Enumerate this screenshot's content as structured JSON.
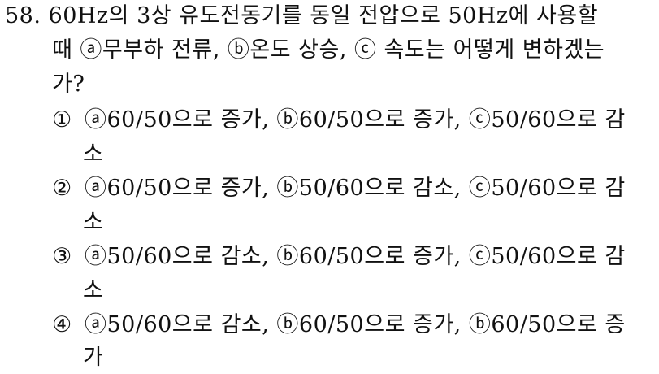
{
  "question": {
    "line1": "58. 60Hz의 3상 유도전동기를 동일 전압으로 50Hz에 사용할",
    "line2": "때 ⓐ무부하 전류, ⓑ온도 상승, ⓒ 속도는 어떻게 변하겠는",
    "line3": "가?"
  },
  "options": [
    {
      "marker": "①",
      "text": "ⓐ60/50으로 증가, ⓑ60/50으로 증가, ⓒ50/60으로 감",
      "continuation": "소"
    },
    {
      "marker": "②",
      "text": "ⓐ60/50으로 증가, ⓑ50/60으로 감소, ⓒ50/60으로 감",
      "continuation": "소"
    },
    {
      "marker": "③",
      "text": "ⓐ50/60으로 감소, ⓑ60/50으로 증가, ⓒ50/60으로 감",
      "continuation": "소"
    },
    {
      "marker": "④",
      "text": "ⓐ50/60으로 감소, ⓑ60/50으로 증가, ⓑ60/50으로 증",
      "continuation": "가"
    }
  ]
}
